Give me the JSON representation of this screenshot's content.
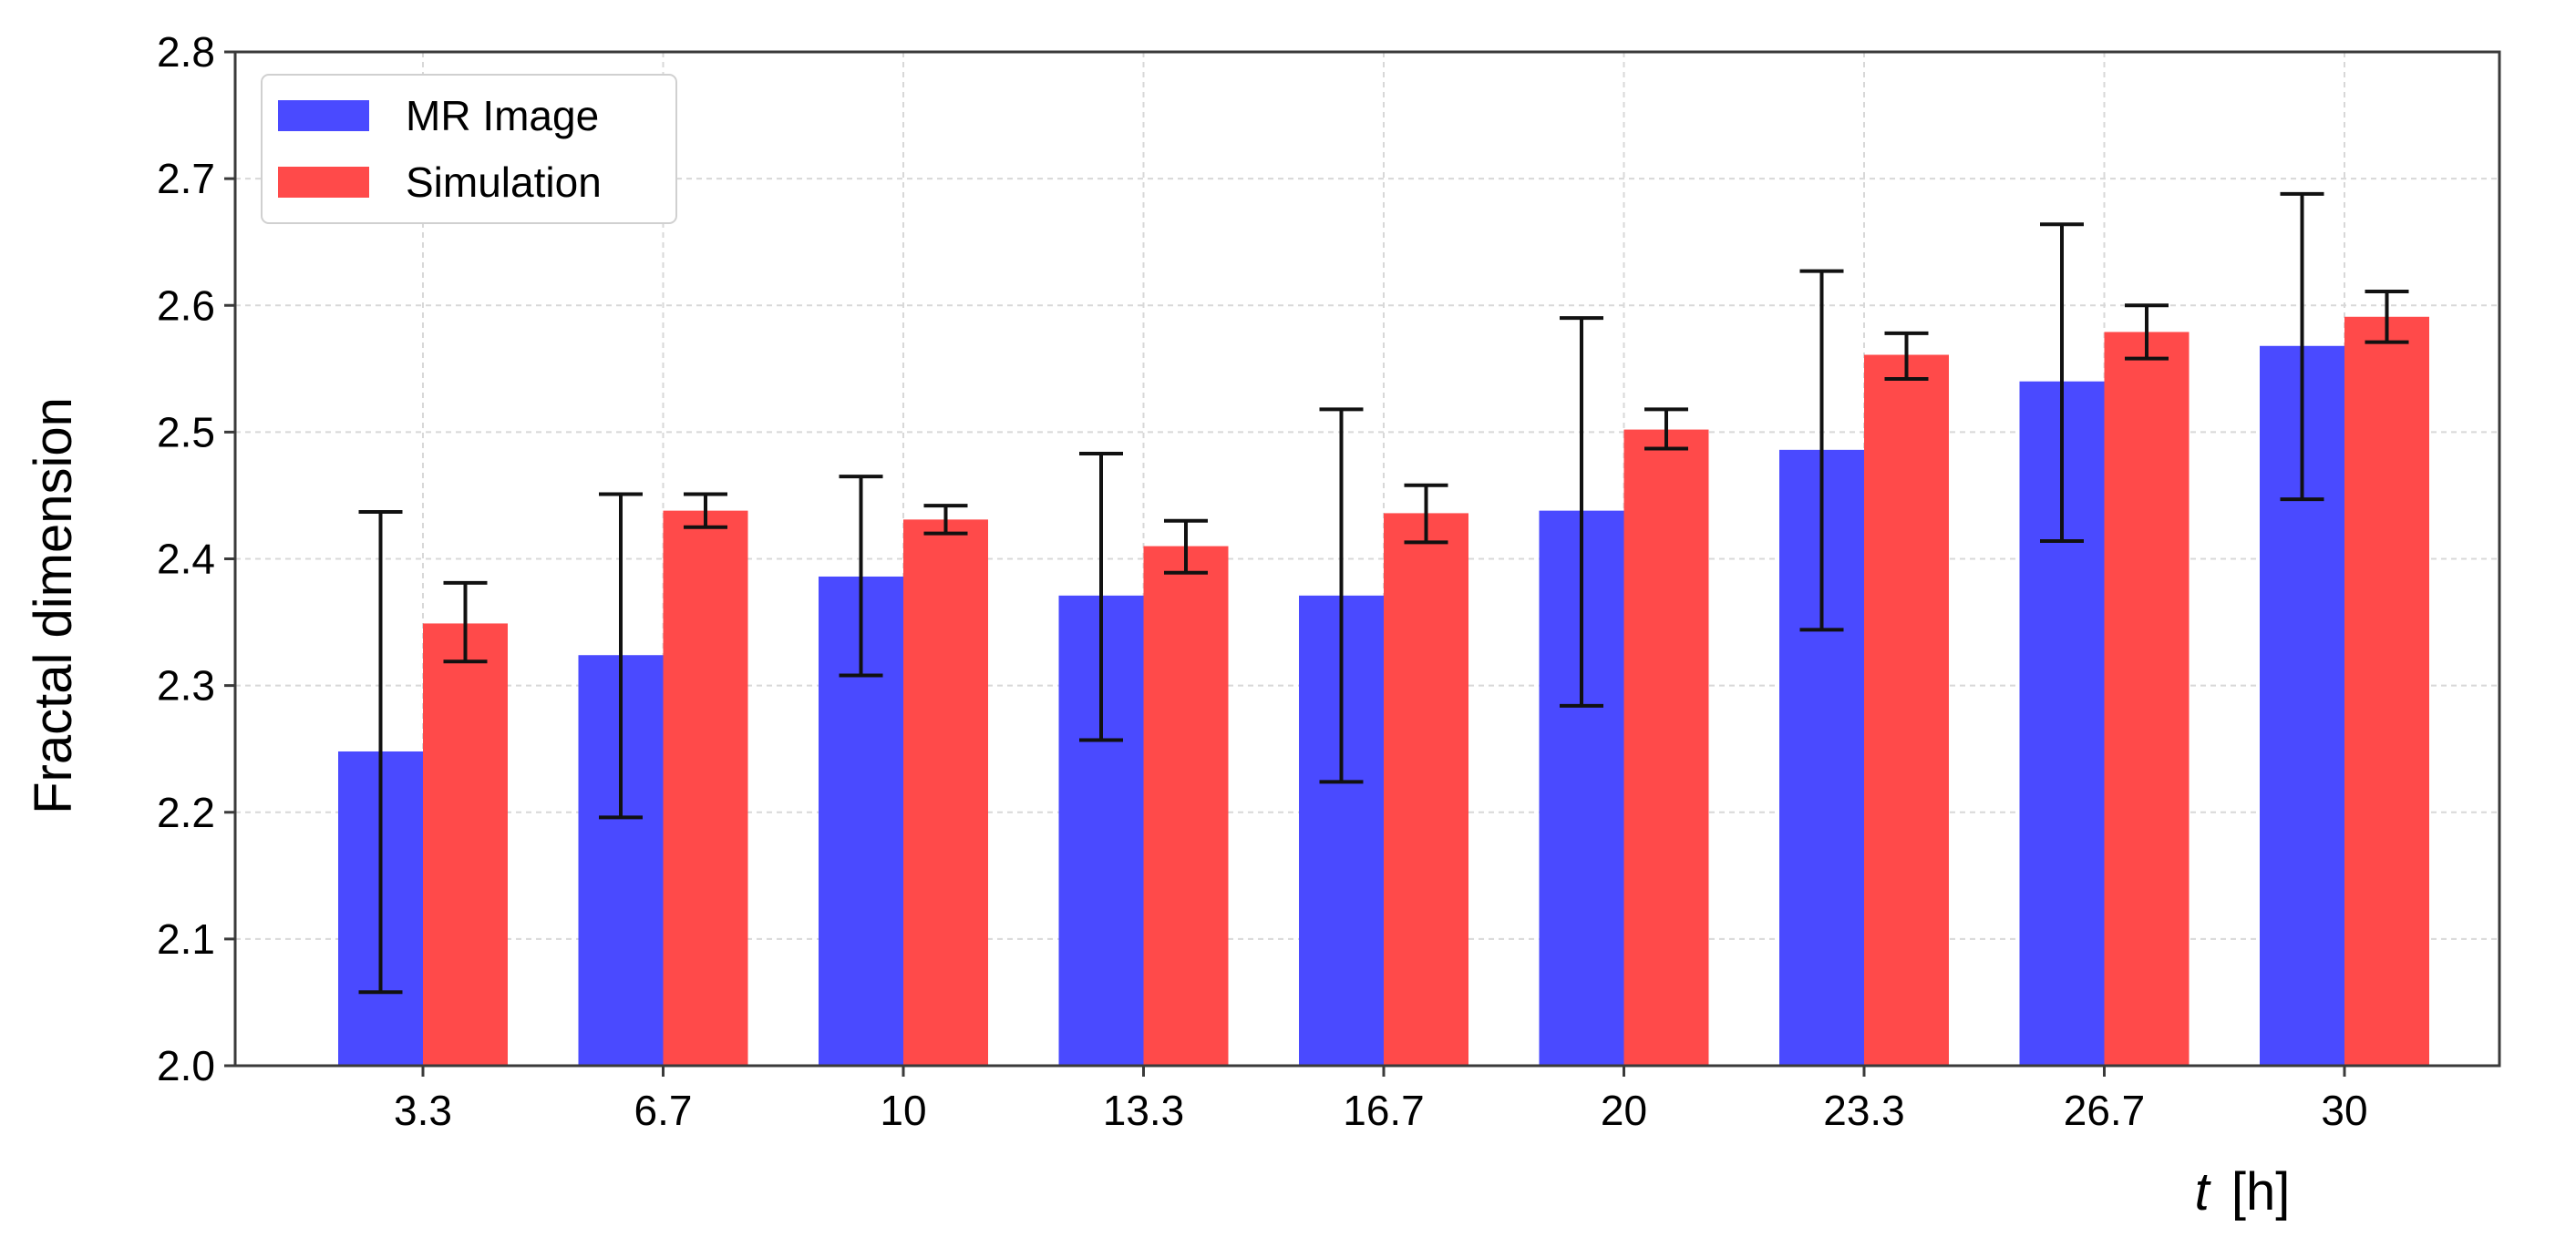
{
  "chart_data": {
    "type": "bar",
    "title": "",
    "xlabel_italic": "t",
    "xlabel_unit": "[h]",
    "ylabel": "Fractal dimension",
    "categories": [
      "3.3",
      "6.7",
      "10",
      "13.3",
      "16.7",
      "20",
      "23.3",
      "26.7",
      "30"
    ],
    "ylim": [
      2.0,
      2.8
    ],
    "yticks": [
      "2.0",
      "2.1",
      "2.2",
      "2.3",
      "2.4",
      "2.5",
      "2.6",
      "2.7",
      "2.8"
    ],
    "grid": true,
    "legend_position": "top-left",
    "series": [
      {
        "name": "MR Image",
        "color": "#4a4aff",
        "values": [
          2.248,
          2.324,
          2.386,
          2.371,
          2.371,
          2.438,
          2.486,
          2.54,
          2.568
        ],
        "err_low": [
          2.058,
          2.196,
          2.308,
          2.257,
          2.224,
          2.284,
          2.344,
          2.414,
          2.447
        ],
        "err_high": [
          2.437,
          2.451,
          2.465,
          2.483,
          2.518,
          2.59,
          2.627,
          2.664,
          2.688
        ]
      },
      {
        "name": "Simulation",
        "color": "#ff4a4a",
        "values": [
          2.349,
          2.438,
          2.431,
          2.41,
          2.436,
          2.502,
          2.561,
          2.579,
          2.591
        ],
        "err_low": [
          2.319,
          2.425,
          2.42,
          2.389,
          2.413,
          2.487,
          2.542,
          2.558,
          2.571
        ],
        "err_high": [
          2.381,
          2.451,
          2.442,
          2.43,
          2.458,
          2.518,
          2.578,
          2.6,
          2.611
        ]
      }
    ]
  }
}
